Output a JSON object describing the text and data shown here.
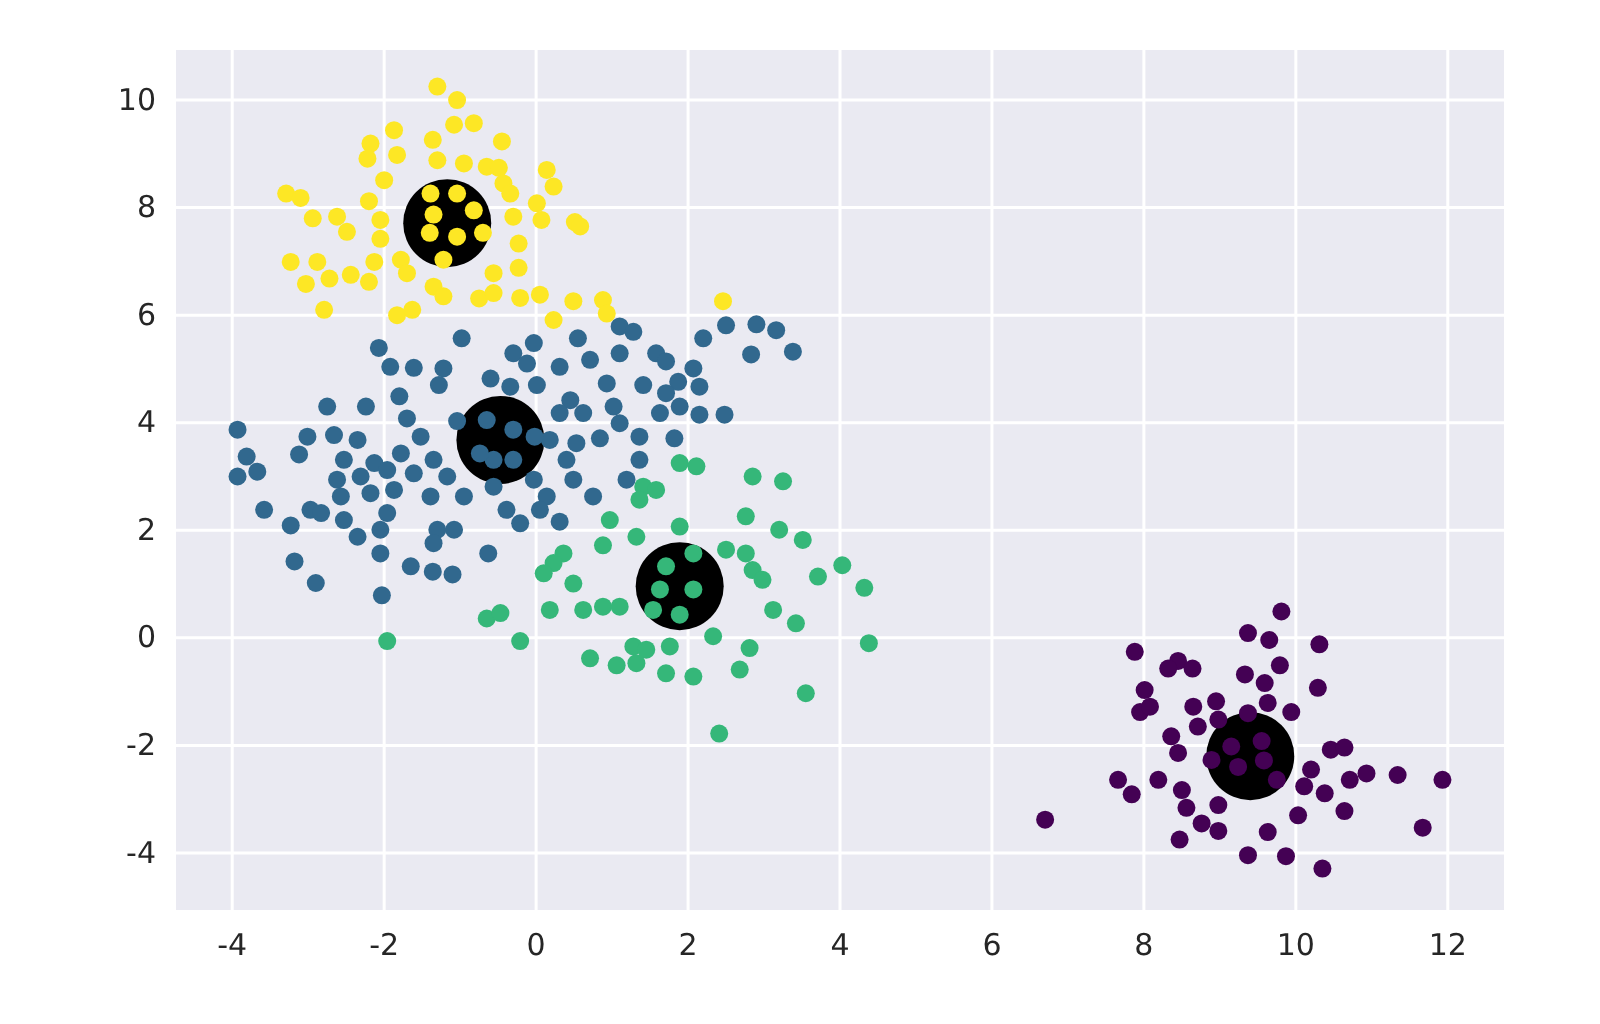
{
  "chart_data": {
    "type": "scatter",
    "xlim": [
      -4.74,
      12.74
    ],
    "ylim": [
      -5.06,
      10.93
    ],
    "xticks": [
      -4,
      -2,
      0,
      2,
      4,
      6,
      8,
      10,
      12
    ],
    "yticks": [
      -4,
      -2,
      0,
      2,
      4,
      6,
      8,
      10
    ],
    "grid": true,
    "marker": "circle",
    "series": [
      {
        "type": "bubble",
        "color": "#000000",
        "x": [
          -1.17,
          -0.47,
          1.89,
          9.4
        ],
        "values": [
          7.71,
          3.68,
          0.96,
          -2.2
        ],
        "sizes": [
          1,
          1,
          1,
          1
        ]
      },
      {
        "color": "#440154",
        "x": [
          9.81,
          9.37,
          9.65,
          10.31,
          7.88,
          8.45,
          8.32,
          8.64,
          9.33,
          9.79,
          9.59,
          10.29,
          8.01,
          7.95,
          8.08,
          8.65,
          8.95,
          9.63,
          9.94,
          8.36,
          8.71,
          8.98,
          9.37,
          8.45,
          10.46,
          10.64,
          7.66,
          7.84,
          8.19,
          8.5,
          10.71,
          10.93,
          11.34,
          11.93,
          10.11,
          10.38,
          10.2,
          8.56,
          8.98,
          10.03,
          10.64,
          6.7,
          8.76,
          8.98,
          9.63,
          8.47,
          11.67,
          9.37,
          9.87,
          10.35,
          9.15,
          9.55,
          9.24,
          9.58,
          8.89,
          9.75
        ],
        "values": [
          0.49,
          0.09,
          -0.04,
          -0.12,
          -0.26,
          -0.43,
          -0.57,
          -0.57,
          -0.68,
          -0.51,
          -0.84,
          -0.93,
          -0.97,
          -1.38,
          -1.28,
          -1.28,
          -1.18,
          -1.21,
          -1.38,
          -1.83,
          -1.65,
          -1.52,
          -1.4,
          -2.14,
          -2.08,
          -2.04,
          -2.64,
          -2.91,
          -2.64,
          -2.83,
          -2.64,
          -2.52,
          -2.55,
          -2.64,
          -2.76,
          -2.89,
          -2.45,
          -3.16,
          -3.11,
          -3.3,
          -3.22,
          -3.38,
          -3.45,
          -3.59,
          -3.61,
          -3.75,
          -3.53,
          -4.04,
          -4.06,
          -4.29,
          -2.02,
          -1.92,
          -2.4,
          -2.28,
          -2.27,
          -2.64
        ]
      },
      {
        "color": "#31688e",
        "x": [
          1.1,
          1.28,
          2.5,
          2.9,
          3.16,
          3.38,
          2.83,
          2.2,
          0.55,
          -0.98,
          -2.07,
          -1.92,
          -1.61,
          -1.22,
          -1.28,
          -0.3,
          -0.03,
          -0.12,
          0.31,
          0.71,
          1.1,
          1.58,
          1.71,
          2.07,
          -0.6,
          -0.34,
          0.01,
          0.45,
          0.93,
          1.41,
          1.87,
          2.15,
          1.02,
          1.71,
          1.89,
          1.63,
          2.15,
          2.48,
          -1.8,
          -2.75,
          -2.24,
          -1.7,
          -1.04,
          0.31,
          0.62,
          1.1,
          -3.93,
          -3.01,
          -2.66,
          -2.35,
          -1.52,
          0.18,
          0.53,
          0.84,
          1.36,
          1.82,
          -3.81,
          -3.12,
          -2.53,
          -2.13,
          -1.78,
          -1.35,
          -0.56,
          1.36,
          0.4,
          -3.93,
          -3.67,
          -2.62,
          -2.31,
          -1.96,
          -1.61,
          -1.17,
          -0.03,
          0.49,
          1.19,
          -2.57,
          -2.18,
          -1.87,
          -1.39,
          -0.95,
          -0.56,
          0.14,
          0.75,
          -3.58,
          -2.97,
          -2.83,
          -2.53,
          -1.96,
          -0.39,
          0.05,
          -3.23,
          -2.05,
          -1.3,
          -1.08,
          -0.21,
          0.31,
          -2.35,
          -1.35,
          -2.05,
          -0.63,
          -3.18,
          -1.65,
          -1.36,
          -1.1,
          -2.9,
          -2.03,
          -0.65,
          -0.3,
          -0.74,
          -0.3,
          -0.02
        ],
        "values": [
          5.79,
          5.69,
          5.81,
          5.83,
          5.72,
          5.32,
          5.27,
          5.57,
          5.57,
          5.57,
          5.39,
          5.04,
          5.02,
          5.01,
          4.7,
          5.29,
          5.48,
          5.1,
          5.04,
          5.17,
          5.29,
          5.29,
          5.14,
          5.01,
          4.82,
          4.67,
          4.7,
          4.42,
          4.73,
          4.7,
          4.76,
          4.67,
          4.3,
          4.55,
          4.3,
          4.18,
          4.15,
          4.15,
          4.49,
          4.3,
          4.3,
          4.08,
          4.03,
          4.18,
          4.18,
          3.99,
          3.87,
          3.74,
          3.77,
          3.68,
          3.74,
          3.68,
          3.62,
          3.71,
          3.74,
          3.71,
          3.37,
          3.41,
          3.31,
          3.25,
          3.43,
          3.31,
          3.31,
          3.31,
          3.31,
          3.0,
          3.09,
          2.94,
          3.0,
          3.12,
          3.06,
          3.0,
          2.94,
          2.94,
          2.94,
          2.63,
          2.69,
          2.75,
          2.63,
          2.63,
          2.81,
          2.63,
          2.63,
          2.38,
          2.38,
          2.32,
          2.19,
          2.32,
          2.38,
          2.38,
          2.09,
          2.01,
          2.01,
          2.01,
          2.13,
          2.16,
          1.88,
          1.76,
          1.57,
          1.57,
          1.42,
          1.33,
          1.23,
          1.18,
          1.02,
          0.79,
          4.05,
          3.87,
          3.43,
          3.31,
          3.74
        ]
      },
      {
        "color": "#35b779",
        "x": [
          1.89,
          2.11,
          2.85,
          3.25,
          1.41,
          1.58,
          1.36,
          0.97,
          1.89,
          2.76,
          3.2,
          1.32,
          0.88,
          3.51,
          0.36,
          0.23,
          2.5,
          2.76,
          4.03,
          0.1,
          0.49,
          2.85,
          2.98,
          3.71,
          4.32,
          0.62,
          0.88,
          1.1,
          0.18,
          -0.65,
          -0.47,
          -1.96,
          -0.21,
          3.12,
          3.42,
          4.38,
          1.28,
          1.45,
          1.76,
          2.33,
          2.81,
          0.71,
          1.06,
          1.32,
          1.71,
          2.07,
          2.68,
          3.55,
          2.41,
          1.71,
          2.07,
          1.63,
          2.07,
          1.89,
          1.54
        ],
        "values": [
          3.25,
          3.19,
          3.0,
          2.91,
          2.81,
          2.75,
          2.57,
          2.19,
          2.07,
          2.26,
          2.01,
          1.88,
          1.72,
          1.82,
          1.57,
          1.39,
          1.64,
          1.57,
          1.35,
          1.2,
          1.01,
          1.26,
          1.08,
          1.14,
          0.93,
          0.52,
          0.58,
          0.58,
          0.52,
          0.36,
          0.46,
          -0.06,
          -0.06,
          0.52,
          0.27,
          -0.1,
          -0.16,
          -0.22,
          -0.16,
          0.03,
          -0.19,
          -0.38,
          -0.51,
          -0.47,
          -0.66,
          -0.72,
          -0.59,
          -1.03,
          -1.78,
          1.33,
          1.57,
          0.9,
          0.9,
          0.43,
          0.52
        ]
      },
      {
        "color": "#fde725",
        "x": [
          -1.3,
          -1.04,
          -1.87,
          -1.08,
          -0.82,
          -2.18,
          -2.22,
          -1.83,
          -1.36,
          -0.45,
          -1.3,
          -0.95,
          -0.65,
          -0.49,
          0.14,
          -2.0,
          0.23,
          -0.43,
          -3.29,
          -3.1,
          -2.2,
          -0.34,
          0.01,
          -2.94,
          -2.62,
          -2.49,
          -2.05,
          -2.05,
          -0.3,
          0.07,
          0.51,
          0.58,
          -0.23,
          -3.23,
          -2.88,
          -3.03,
          -2.72,
          -2.44,
          -2.13,
          -2.2,
          -1.78,
          -1.7,
          -0.56,
          -0.23,
          -2.79,
          -1.83,
          -1.63,
          -1.35,
          -1.22,
          -0.75,
          -0.56,
          -0.21,
          0.05,
          0.23,
          0.49,
          0.88,
          0.93,
          2.46,
          -1.39,
          -1.04,
          -1.35,
          -0.82,
          -1.4,
          -1.04,
          -0.7,
          -1.22
        ],
        "values": [
          10.25,
          10.0,
          9.44,
          9.54,
          9.57,
          9.19,
          8.91,
          8.98,
          9.26,
          9.23,
          8.88,
          8.82,
          8.76,
          8.74,
          8.7,
          8.51,
          8.39,
          8.45,
          8.26,
          8.18,
          8.12,
          8.26,
          8.08,
          7.8,
          7.83,
          7.55,
          7.77,
          7.42,
          7.83,
          7.77,
          7.73,
          7.65,
          7.33,
          6.99,
          6.99,
          6.58,
          6.68,
          6.75,
          6.99,
          6.62,
          7.03,
          6.78,
          6.78,
          6.88,
          6.1,
          6.0,
          6.1,
          6.53,
          6.35,
          6.31,
          6.41,
          6.32,
          6.38,
          5.91,
          6.26,
          6.28,
          6.03,
          6.26,
          8.26,
          8.26,
          7.87,
          7.95,
          7.53,
          7.46,
          7.53,
          7.03
        ]
      }
    ]
  }
}
